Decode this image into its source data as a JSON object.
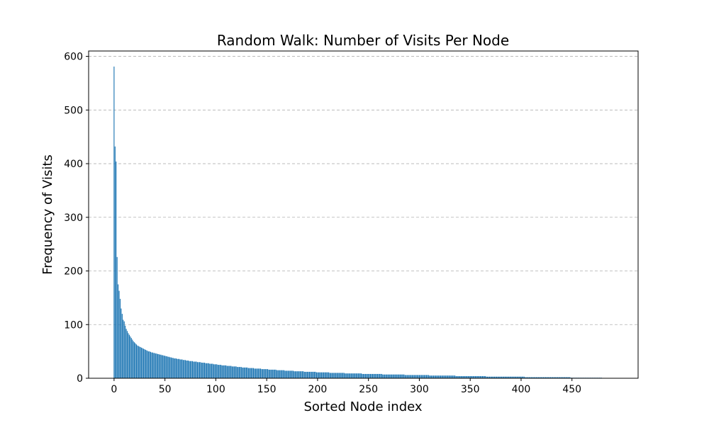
{
  "chart_data": {
    "type": "bar",
    "title": "Random Walk: Number of Visits Per Node",
    "xlabel": "Sorted Node index",
    "ylabel": "Frequency of Visits",
    "xlim": [
      -25,
      515
    ],
    "ylim": [
      0,
      610
    ],
    "xticks": [
      0,
      50,
      100,
      150,
      200,
      250,
      300,
      350,
      400,
      450
    ],
    "yticks": [
      0,
      100,
      200,
      300,
      400,
      500,
      600
    ],
    "grid": {
      "axis": "y",
      "style": "dashed"
    },
    "bar_color": "#1f77b4",
    "values": [
      581,
      432,
      404,
      226,
      175,
      163,
      148,
      130,
      120,
      109,
      106,
      98,
      92,
      88,
      84,
      81,
      78,
      75,
      72,
      69,
      67,
      65,
      63,
      61,
      60,
      59,
      58,
      57,
      56,
      55,
      54,
      53,
      52,
      51,
      50,
      50,
      49,
      48,
      48,
      47,
      47,
      46,
      46,
      45,
      45,
      44,
      44,
      43,
      43,
      42,
      42,
      41,
      41,
      40,
      40,
      39,
      39,
      38,
      38,
      37,
      37,
      37,
      36,
      36,
      36,
      35,
      35,
      35,
      34,
      34,
      34,
      33,
      33,
      33,
      32,
      32,
      32,
      32,
      31,
      31,
      31,
      31,
      30,
      30,
      30,
      30,
      29,
      29,
      29,
      29,
      28,
      28,
      28,
      28,
      27,
      27,
      27,
      27,
      26,
      26,
      26,
      26,
      25,
      25,
      25,
      25,
      24,
      24,
      24,
      24,
      24,
      23,
      23,
      23,
      23,
      23,
      22,
      22,
      22,
      22,
      22,
      21,
      21,
      21,
      21,
      21,
      20,
      20,
      20,
      20,
      20,
      20,
      19,
      19,
      19,
      19,
      19,
      19,
      18,
      18,
      18,
      18,
      18,
      18,
      18,
      17,
      17,
      17,
      17,
      17,
      17,
      17,
      16,
      16,
      16,
      16,
      16,
      16,
      16,
      16,
      15,
      15,
      15,
      15,
      15,
      15,
      15,
      15,
      14,
      14,
      14,
      14,
      14,
      14,
      14,
      14,
      14,
      13,
      13,
      13,
      13,
      13,
      13,
      13,
      13,
      13,
      13,
      12,
      12,
      12,
      12,
      12,
      12,
      12,
      12,
      12,
      12,
      12,
      12,
      11,
      11,
      11,
      11,
      11,
      11,
      11,
      11,
      11,
      11,
      11,
      11,
      11,
      10,
      10,
      10,
      10,
      10,
      10,
      10,
      10,
      10,
      10,
      10,
      10,
      10,
      10,
      10,
      9,
      9,
      9,
      9,
      9,
      9,
      9,
      9,
      9,
      9,
      9,
      9,
      9,
      9,
      9,
      9,
      9,
      8,
      8,
      8,
      8,
      8,
      8,
      8,
      8,
      8,
      8,
      8,
      8,
      8,
      8,
      8,
      8,
      8,
      8,
      8,
      8,
      7,
      7,
      7,
      7,
      7,
      7,
      7,
      7,
      7,
      7,
      7,
      7,
      7,
      7,
      7,
      7,
      7,
      7,
      7,
      7,
      7,
      7,
      6,
      6,
      6,
      6,
      6,
      6,
      6,
      6,
      6,
      6,
      6,
      6,
      6,
      6,
      6,
      6,
      6,
      6,
      6,
      6,
      6,
      6,
      6,
      6,
      5,
      5,
      5,
      5,
      5,
      5,
      5,
      5,
      5,
      5,
      5,
      5,
      5,
      5,
      5,
      5,
      5,
      5,
      5,
      5,
      5,
      5,
      5,
      5,
      5,
      5,
      4,
      4,
      4,
      4,
      4,
      4,
      4,
      4,
      4,
      4,
      4,
      4,
      4,
      4,
      4,
      4,
      4,
      4,
      4,
      4,
      4,
      4,
      4,
      4,
      4,
      4,
      4,
      4,
      4,
      4,
      3,
      3,
      3,
      3,
      3,
      3,
      3,
      3,
      3,
      3,
      3,
      3,
      3,
      3,
      3,
      3,
      3,
      3,
      3,
      3,
      3,
      3,
      3,
      3,
      3,
      3,
      3,
      3,
      3,
      3,
      3,
      3,
      3,
      3,
      3,
      3,
      3,
      3,
      2,
      2,
      2,
      2,
      2,
      2,
      2,
      2,
      2,
      2,
      2,
      2,
      2,
      2,
      2,
      2,
      2,
      2,
      2,
      2,
      2,
      2,
      2,
      2,
      2,
      2,
      2,
      2,
      2,
      2,
      2,
      2,
      2,
      2,
      2,
      2,
      2,
      2,
      2,
      2,
      2,
      2,
      2,
      2,
      2,
      1,
      1,
      1,
      1,
      1,
      1,
      1,
      1,
      1,
      1,
      1,
      1,
      1,
      1,
      1,
      1,
      1,
      1,
      1,
      1,
      1,
      1,
      1,
      1,
      1,
      1,
      1,
      1,
      1,
      1,
      1
    ]
  }
}
